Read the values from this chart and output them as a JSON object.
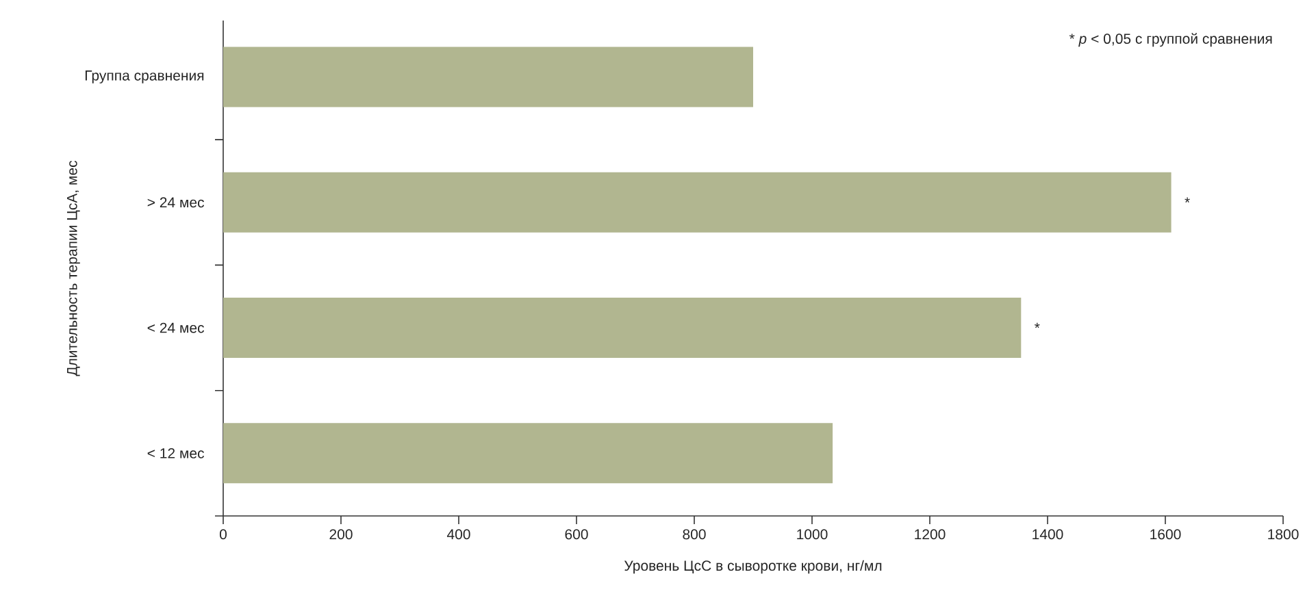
{
  "chart_data": {
    "type": "bar",
    "orientation": "horizontal",
    "xlabel": "Уровень ЦсС  в сыворотке крови, нг/мл",
    "ylabel": "Длительность терапии ЦсА, мес",
    "categories": [
      "Группа сравнения",
      "> 24 мес",
      "< 24 мес",
      "< 12 мес"
    ],
    "values": [
      900,
      1610,
      1355,
      1035
    ],
    "color": "#b1b690",
    "xlim": [
      0,
      1800
    ],
    "xticks": [
      0,
      200,
      400,
      600,
      800,
      1000,
      1200,
      1400,
      1600,
      1800
    ],
    "grid": false,
    "annotations": [
      "* *p* < 0,05 с группой сравнения",
      {
        "text": "*",
        "x": 1610,
        "y": "> 24 мес"
      },
      {
        "text": "*",
        "x": 1355,
        "y": "< 24 мес"
      }
    ]
  }
}
